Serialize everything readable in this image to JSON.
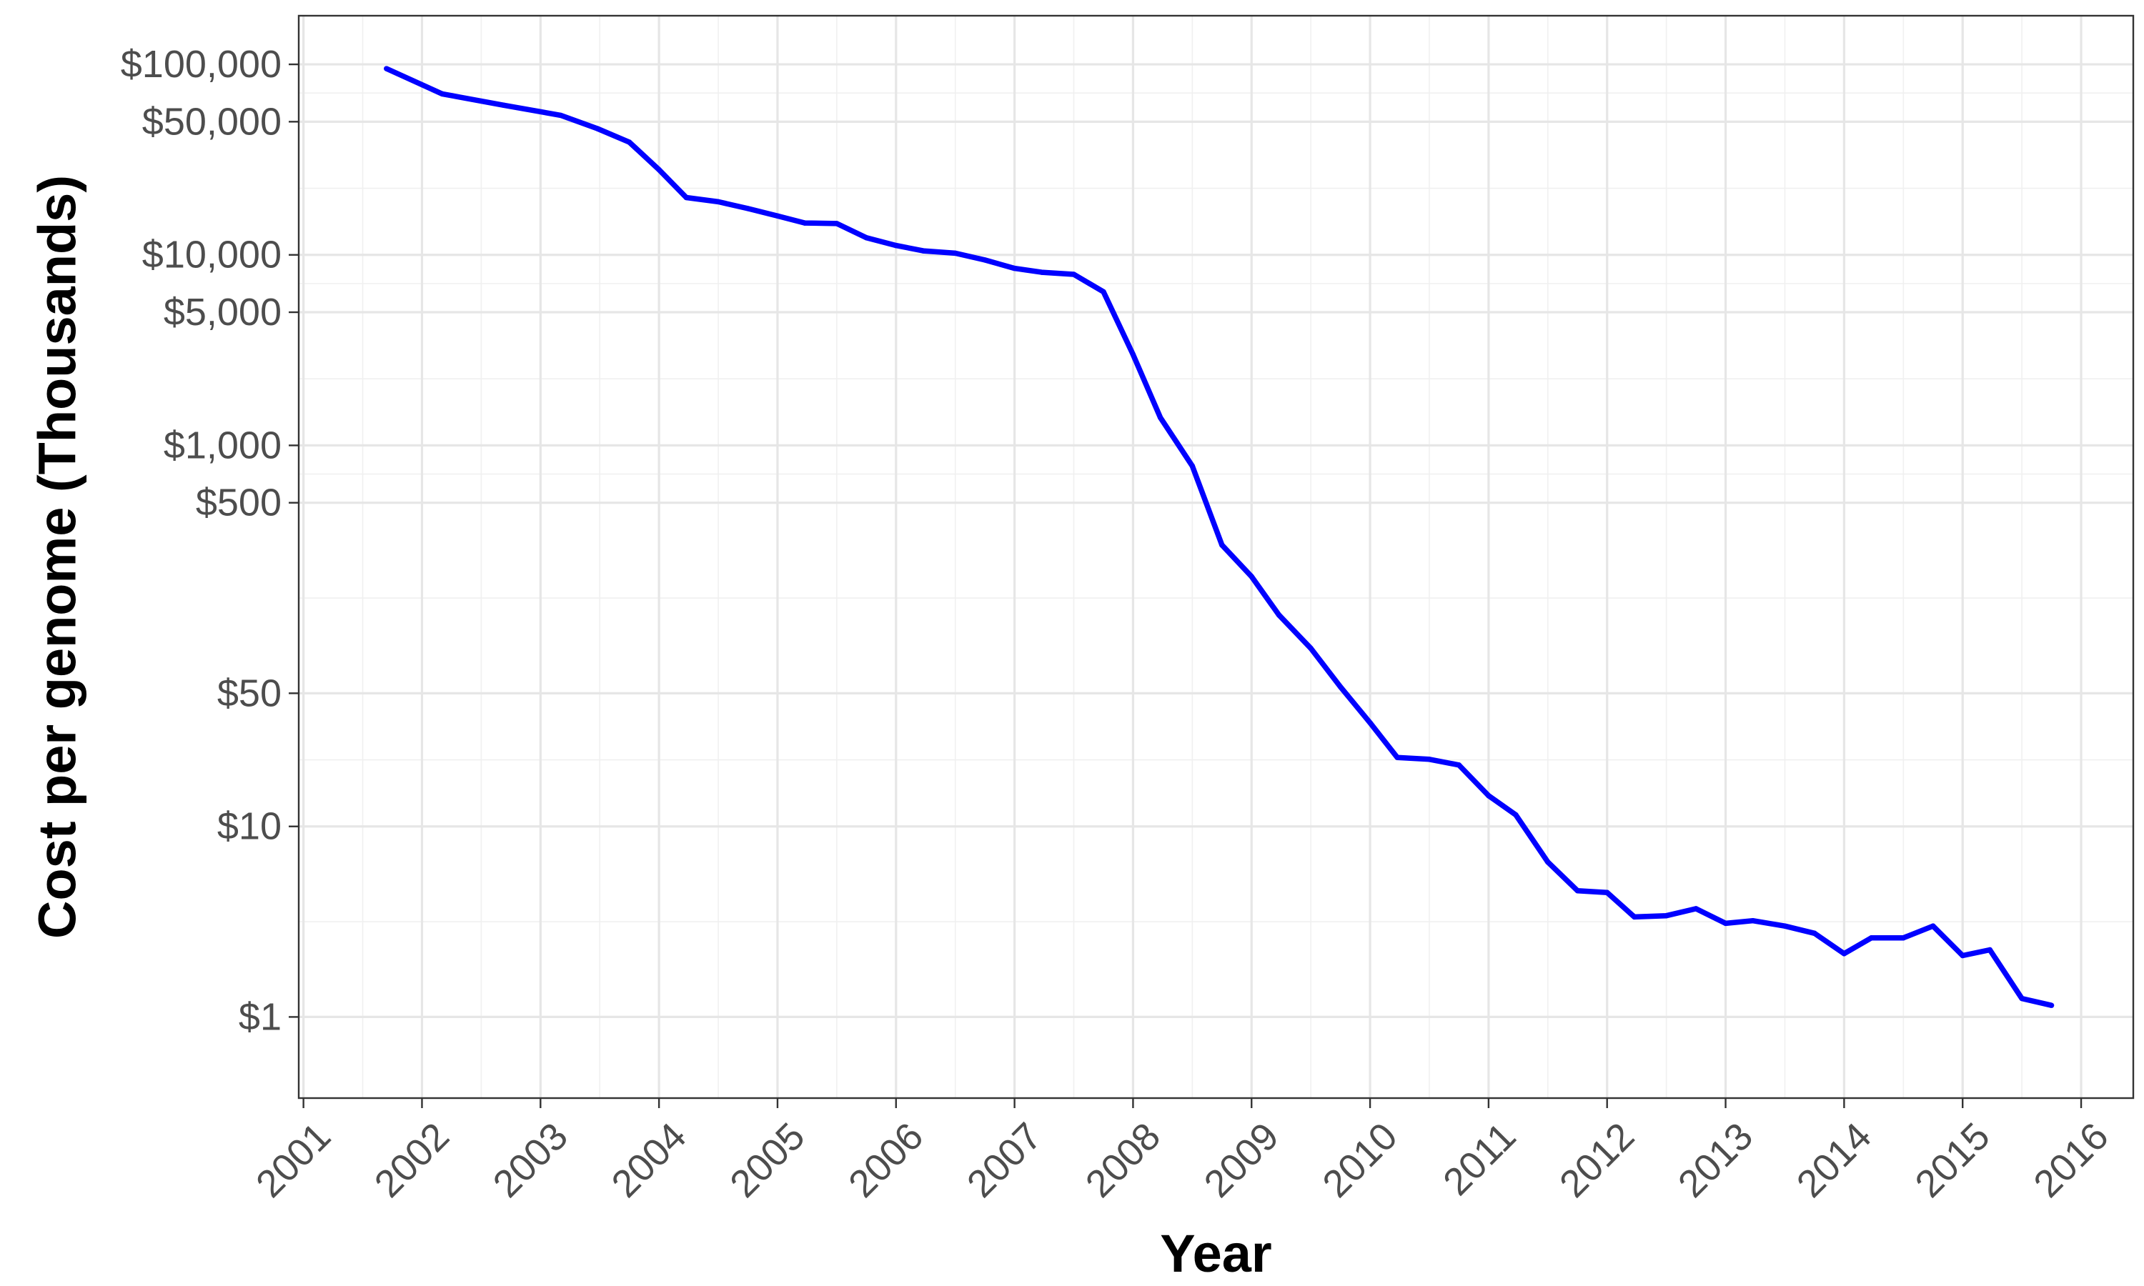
{
  "chart_data": {
    "type": "line",
    "xlabel": "Year",
    "ylabel": "Cost per genome (Thousands)",
    "x_scale": "linear",
    "y_scale": "log10",
    "xlim": [
      2000.96,
      2016.44
    ],
    "ylim": [
      0.375,
      180000
    ],
    "x_ticks": [
      2001,
      2002,
      2003,
      2004,
      2005,
      2006,
      2007,
      2008,
      2009,
      2010,
      2011,
      2012,
      2013,
      2014,
      2015,
      2016
    ],
    "x_tick_labels": [
      "2001",
      "2002",
      "2003",
      "2004",
      "2005",
      "2006",
      "2007",
      "2008",
      "2009",
      "2010",
      "2011",
      "2012",
      "2013",
      "2014",
      "2015",
      "2016"
    ],
    "y_ticks": [
      1,
      10,
      50,
      500,
      1000,
      5000,
      10000,
      50000,
      100000
    ],
    "y_tick_labels": [
      "$1",
      "$10",
      "$50",
      "$500",
      "$1,000",
      "$5,000",
      "$10,000",
      "$50,000",
      "$100,000"
    ],
    "grid": true,
    "series": [
      {
        "color": "#0000ff",
        "x": [
          2001.7,
          2002.17,
          2002.69,
          2003.17,
          2003.48,
          2003.75,
          2004.0,
          2004.23,
          2004.5,
          2004.75,
          2005.0,
          2005.23,
          2005.5,
          2005.75,
          2006.0,
          2006.23,
          2006.5,
          2006.75,
          2007.0,
          2007.23,
          2007.5,
          2007.75,
          2008.0,
          2008.23,
          2008.5,
          2008.75,
          2009.0,
          2009.23,
          2009.5,
          2009.75,
          2010.0,
          2010.23,
          2010.5,
          2010.75,
          2011.0,
          2011.23,
          2011.5,
          2011.75,
          2012.0,
          2012.23,
          2012.5,
          2012.75,
          2013.0,
          2013.23,
          2013.5,
          2013.75,
          2014.0,
          2014.23,
          2014.5,
          2014.75,
          2015.0,
          2015.23,
          2015.5,
          2015.75
        ],
        "y": [
          95000,
          70000,
          61000,
          54000,
          46000,
          39000,
          28000,
          20000,
          19000,
          17500,
          16000,
          14700,
          14600,
          12300,
          11200,
          10500,
          10200,
          9400,
          8500,
          8100,
          7900,
          6400,
          3000,
          1400,
          780,
          300,
          205,
          129,
          86,
          54,
          35,
          23,
          22.5,
          21,
          14.5,
          11.5,
          6.5,
          4.6,
          4.5,
          3.35,
          3.4,
          3.7,
          3.1,
          3.2,
          3.0,
          2.75,
          2.15,
          2.6,
          2.6,
          3.0,
          2.1,
          2.25,
          1.25,
          1.15
        ]
      }
    ]
  }
}
